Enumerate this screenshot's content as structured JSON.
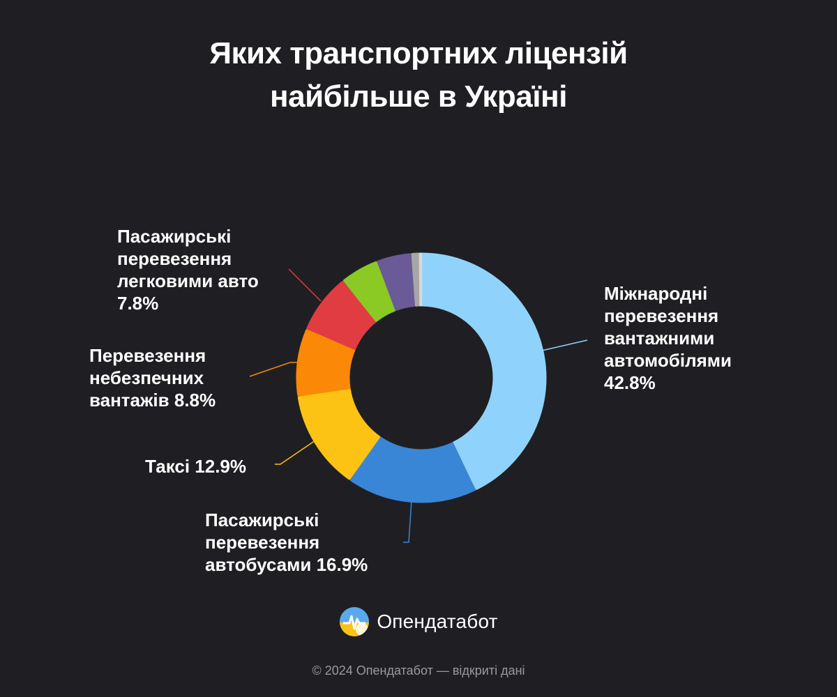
{
  "title_lines": [
    "Яких транспортних ліцензій",
    "найбільше в Україні"
  ],
  "chart_data": {
    "type": "pie",
    "title": "Яких транспортних ліцензій найбільше в Україні",
    "unit": "%",
    "slices": [
      {
        "label_lines": [
          "Міжнародні",
          "перевезення",
          "вантажними",
          "автомобілями",
          "42.8%"
        ],
        "value": 42.8,
        "color": "#8fd3fc"
      },
      {
        "label_lines": [
          "Пасажирські",
          "перевезення",
          "автобусами 16.9%"
        ],
        "value": 16.9,
        "color": "#3a86d6"
      },
      {
        "label_lines": [
          "Таксі 12.9%"
        ],
        "value": 12.9,
        "color": "#fcc314"
      },
      {
        "label_lines": [
          "Перевезення",
          "небезпечних",
          "вантажів 8.8%"
        ],
        "value": 8.8,
        "color": "#fb8807"
      },
      {
        "label_lines": [
          "Пасажирські",
          "перевезення",
          "легковими авто",
          "7.8%"
        ],
        "value": 7.8,
        "color": "#e03c42"
      },
      {
        "label_lines": [],
        "value": 5.0,
        "color": "#8bc925"
      },
      {
        "label_lines": [],
        "value": 4.5,
        "color": "#6a5a97"
      },
      {
        "label_lines": [],
        "value": 1.1,
        "color": "#a6a6a6"
      },
      {
        "label_lines": [],
        "value": 0.2,
        "color": "#d8d8d8"
      }
    ]
  },
  "brand": {
    "name": "Опендатабот",
    "logo_icon": "opendatabot-logo-icon"
  },
  "footer": "© 2024 Опендатабот — відкриті дані"
}
